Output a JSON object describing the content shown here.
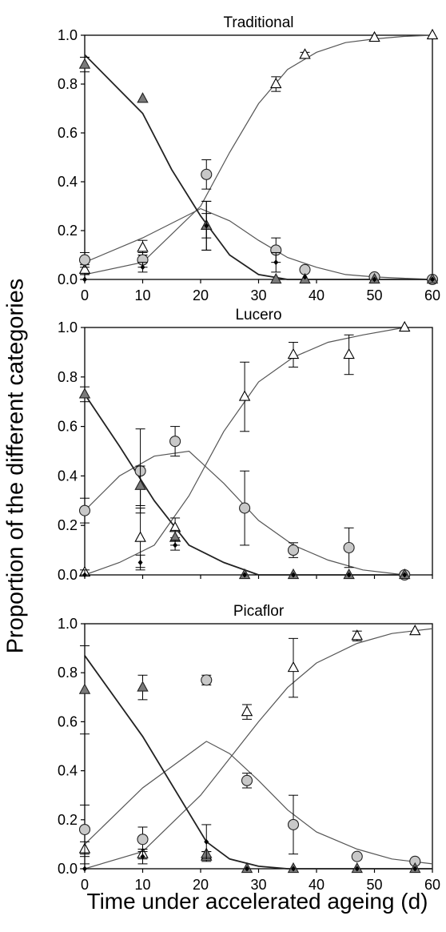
{
  "figure": {
    "ylabel": "Proportion of the different categories",
    "xlabel": "Time under accelerated ageing (d)"
  },
  "chart_data": [
    {
      "type": "scatter",
      "title": "Traditional",
      "xlim": [
        0,
        60
      ],
      "ylim": [
        0,
        1.0
      ],
      "xticks": [
        "0",
        "10",
        "20",
        "30",
        "40",
        "50",
        "60"
      ],
      "yticks": [
        "0.0",
        "0.2",
        "0.4",
        "0.6",
        "0.8",
        "1.0"
      ],
      "series": [
        {
          "marker": "open-triangle",
          "x": [
            0,
            10,
            21,
            33,
            38,
            50,
            60
          ],
          "y": [
            0.04,
            0.13,
            0.22,
            0.8,
            0.92,
            0.99,
            1.0
          ],
          "err": [
            0.02,
            0.03,
            0.05,
            0.03,
            0.01,
            0.0,
            0.0
          ]
        },
        {
          "marker": "circle",
          "x": [
            0,
            10,
            21,
            33,
            38,
            50,
            60
          ],
          "y": [
            0.08,
            0.08,
            0.43,
            0.12,
            0.04,
            0.01,
            0.0
          ],
          "err": [
            0.03,
            0.03,
            0.06,
            0.05,
            0.01,
            0.0,
            0.0
          ]
        },
        {
          "marker": "filled-triangle",
          "x": [
            0,
            10,
            21,
            33,
            38,
            50,
            60
          ],
          "y": [
            0.88,
            0.74,
            0.22,
            0.0,
            0.0,
            0.0,
            0.0
          ],
          "err": [
            0.03,
            0.0,
            0.1,
            0.0,
            0.0,
            0.0,
            0.0
          ]
        },
        {
          "marker": "dot",
          "x": [
            0,
            10,
            21,
            33,
            38,
            50,
            60
          ],
          "y": [
            0.0,
            0.05,
            0.22,
            0.07,
            0.01,
            0.0,
            0.0
          ],
          "err": [
            0.02,
            0.02,
            0.1,
            0.04,
            0.0,
            0.0,
            0.0
          ]
        }
      ],
      "fits": [
        {
          "name": "open-triangle-fit",
          "x": [
            0,
            10,
            20,
            25,
            30,
            35,
            40,
            45,
            50,
            55,
            60
          ],
          "y": [
            0.02,
            0.07,
            0.3,
            0.52,
            0.72,
            0.86,
            0.93,
            0.97,
            0.985,
            0.995,
            1.0
          ]
        },
        {
          "name": "circle-fit",
          "x": [
            0,
            10,
            20,
            25,
            30,
            35,
            40,
            45,
            50,
            55,
            60
          ],
          "y": [
            0.07,
            0.17,
            0.29,
            0.24,
            0.16,
            0.09,
            0.05,
            0.02,
            0.01,
            0.005,
            0.0
          ]
        },
        {
          "name": "filled-triangle-fit",
          "x": [
            0,
            10,
            15,
            20,
            25,
            30,
            35,
            40,
            45,
            50,
            60
          ],
          "y": [
            0.92,
            0.68,
            0.45,
            0.26,
            0.1,
            0.02,
            0.0,
            0.0,
            0.0,
            0.0,
            0.0
          ]
        }
      ]
    },
    {
      "type": "scatter",
      "title": "Lucero",
      "xlim": [
        0,
        50
      ],
      "ylim": [
        0,
        1.0
      ],
      "xticks": [],
      "yticks": [
        "0.0",
        "0.2",
        "0.4",
        "0.6",
        "0.8",
        "1.0"
      ],
      "series": [
        {
          "marker": "open-triangle",
          "x": [
            0,
            8,
            13,
            23,
            30,
            38,
            46
          ],
          "y": [
            0.01,
            0.15,
            0.19,
            0.72,
            0.89,
            0.89,
            1.0
          ],
          "err": [
            0.0,
            0.12,
            0.04,
            0.14,
            0.05,
            0.08,
            0.0
          ]
        },
        {
          "marker": "circle",
          "x": [
            0,
            8,
            13,
            23,
            30,
            38,
            46
          ],
          "y": [
            0.26,
            0.42,
            0.54,
            0.27,
            0.1,
            0.11,
            0.0
          ],
          "err": [
            0.05,
            0.17,
            0.06,
            0.15,
            0.03,
            0.08,
            0.0
          ]
        },
        {
          "marker": "filled-triangle",
          "x": [
            0,
            8,
            13,
            23,
            30,
            38,
            46
          ],
          "y": [
            0.73,
            0.36,
            0.15,
            0.0,
            0.0,
            0.0,
            0.0
          ],
          "err": [
            0.03,
            0.08,
            0.03,
            0.0,
            0.0,
            0.0,
            0.0
          ]
        },
        {
          "marker": "dot",
          "x": [
            0,
            8,
            13,
            23,
            30,
            38,
            46
          ],
          "y": [
            0.0,
            0.05,
            0.12,
            0.0,
            0.0,
            0.0,
            0.0
          ],
          "err": [
            0.02,
            0.03,
            0.02,
            0.0,
            0.0,
            0.0,
            0.0
          ]
        }
      ],
      "fits": [
        {
          "name": "open-triangle-fit",
          "x": [
            0,
            5,
            10,
            15,
            20,
            25,
            30,
            35,
            40,
            46
          ],
          "y": [
            0.0,
            0.05,
            0.12,
            0.32,
            0.58,
            0.78,
            0.88,
            0.94,
            0.97,
            1.0
          ]
        },
        {
          "name": "circle-fit",
          "x": [
            0,
            5,
            10,
            15,
            20,
            25,
            30,
            35,
            40,
            46
          ],
          "y": [
            0.26,
            0.4,
            0.48,
            0.5,
            0.37,
            0.22,
            0.12,
            0.06,
            0.02,
            0.0
          ]
        },
        {
          "name": "filled-triangle-fit",
          "x": [
            0,
            5,
            10,
            15,
            20,
            25,
            30,
            35,
            40,
            46
          ],
          "y": [
            0.73,
            0.52,
            0.3,
            0.12,
            0.05,
            0.0,
            0.0,
            0.0,
            0.0,
            0.0
          ]
        }
      ]
    },
    {
      "type": "scatter",
      "title": "Picaflor",
      "xlim": [
        0,
        60
      ],
      "ylim": [
        0,
        1.0
      ],
      "xticks": [
        "0",
        "10",
        "20",
        "30",
        "40",
        "50",
        "60"
      ],
      "yticks": [
        "0.0",
        "0.2",
        "0.4",
        "0.6",
        "0.8",
        "1.0"
      ],
      "series": [
        {
          "marker": "open-triangle",
          "x": [
            0,
            10,
            21,
            28,
            36,
            47,
            57
          ],
          "y": [
            0.08,
            0.06,
            0.05,
            0.64,
            0.82,
            0.95,
            0.97
          ],
          "err": [
            0.03,
            0.02,
            0.02,
            0.03,
            0.12,
            0.02,
            0.0
          ]
        },
        {
          "marker": "circle",
          "x": [
            0,
            10,
            21,
            28,
            36,
            47,
            57
          ],
          "y": [
            0.16,
            0.12,
            0.77,
            0.36,
            0.18,
            0.05,
            0.03
          ],
          "err": [
            0.1,
            0.05,
            0.02,
            0.03,
            0.12,
            0.01,
            0.0
          ]
        },
        {
          "marker": "filled-triangle",
          "x": [
            0,
            10,
            21,
            28,
            36,
            47,
            57
          ],
          "y": [
            0.73,
            0.74,
            0.06,
            0.0,
            0.0,
            0.0,
            0.0
          ],
          "err": [
            0.18,
            0.05,
            0.01,
            0.0,
            0.0,
            0.0,
            0.0
          ]
        },
        {
          "marker": "dot",
          "x": [
            0,
            10,
            21,
            28,
            36,
            47,
            57
          ],
          "y": [
            0.0,
            0.05,
            0.11,
            0.0,
            0.0,
            0.0,
            0.0
          ],
          "err": [
            0.02,
            0.03,
            0.07,
            0.0,
            0.0,
            0.0,
            0.0
          ]
        }
      ],
      "fits": [
        {
          "name": "open-triangle-fit",
          "x": [
            0,
            10,
            20,
            25,
            30,
            35,
            40,
            47,
            53,
            60
          ],
          "y": [
            0.0,
            0.07,
            0.3,
            0.45,
            0.6,
            0.74,
            0.84,
            0.92,
            0.96,
            0.98
          ]
        },
        {
          "name": "circle-fit",
          "x": [
            0,
            10,
            21,
            25,
            30,
            35,
            40,
            47,
            53,
            60
          ],
          "y": [
            0.1,
            0.33,
            0.52,
            0.47,
            0.36,
            0.24,
            0.15,
            0.08,
            0.04,
            0.02
          ]
        },
        {
          "name": "filled-triangle-fit",
          "x": [
            0,
            10,
            21,
            25,
            30,
            35,
            40,
            47,
            60
          ],
          "y": [
            0.87,
            0.54,
            0.11,
            0.04,
            0.01,
            0.0,
            0.0,
            0.0,
            0.0
          ]
        }
      ]
    }
  ]
}
